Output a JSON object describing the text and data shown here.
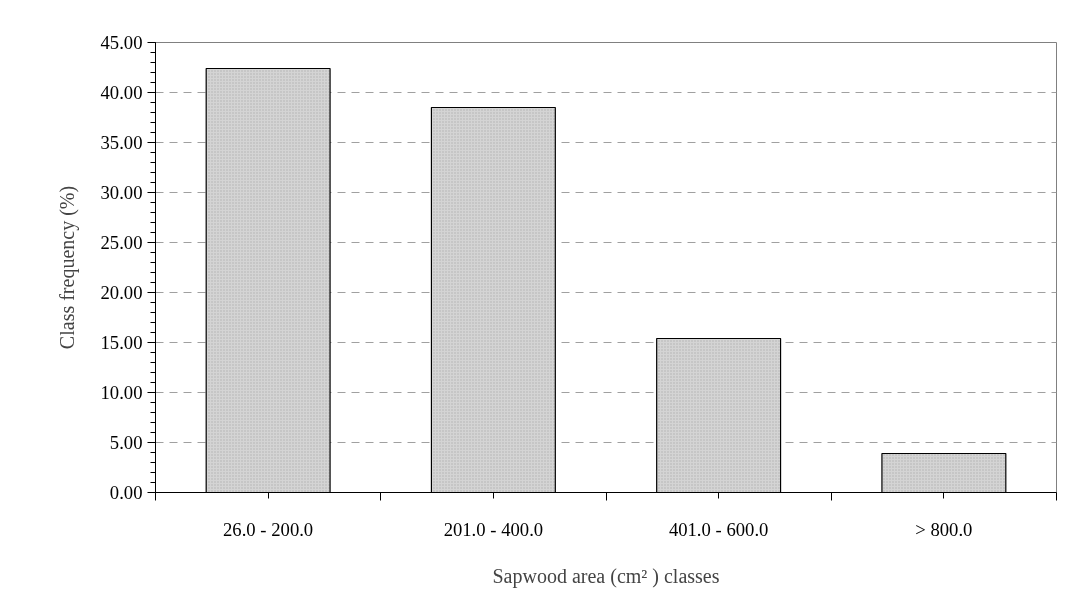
{
  "chart_data": {
    "type": "bar",
    "xlabel": "Sapwood area (cm² ) classes",
    "ylabel": "Class frequency (%)",
    "categories": [
      "26.0 - 200.0",
      "201.0 - 400.0",
      "401.0 - 600.0",
      "> 800.0"
    ],
    "values": [
      42.4,
      38.5,
      15.4,
      3.9
    ],
    "color": "#d4d4d4",
    "ylim": [
      0,
      45
    ],
    "yticks": [
      {
        "value": 0,
        "label": "0.00"
      },
      {
        "value": 5,
        "label": "5.00"
      },
      {
        "value": 10,
        "label": "10.00"
      },
      {
        "value": 15,
        "label": "15.00"
      },
      {
        "value": 20,
        "label": "20.00"
      },
      {
        "value": 25,
        "label": "25.00"
      },
      {
        "value": 30,
        "label": "30.00"
      },
      {
        "value": 35,
        "label": "35.00"
      },
      {
        "value": 40,
        "label": "40.00"
      },
      {
        "value": 45,
        "label": "45.00"
      }
    ],
    "grid": "y"
  }
}
